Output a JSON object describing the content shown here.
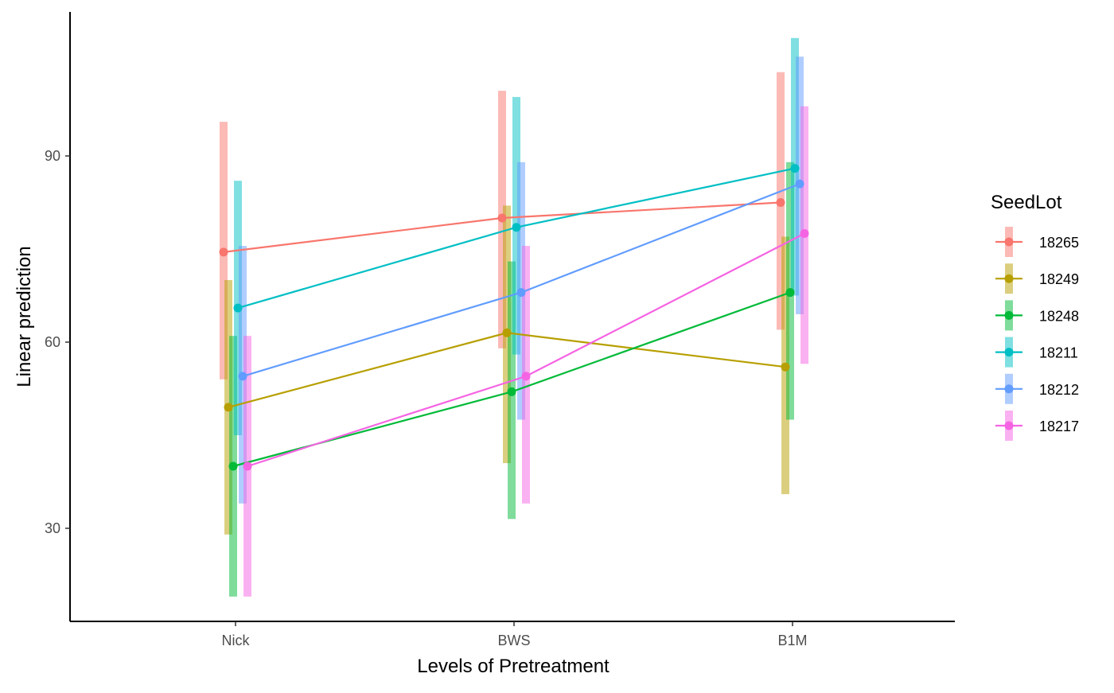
{
  "chart_data": {
    "type": "line",
    "xlabel": "Levels of Pretreatment",
    "ylabel": "Linear prediction",
    "categories": [
      "Nick",
      "BWS",
      "B1M"
    ],
    "yticks": [
      30,
      60,
      90
    ],
    "ylim": [
      15,
      113
    ],
    "legend": {
      "title": "SeedLot",
      "position": "right"
    },
    "series": [
      {
        "name": "18265",
        "color": "#F8766D",
        "values": [
          74.5,
          80,
          82.5
        ],
        "lower": [
          54,
          59,
          62
        ],
        "upper": [
          95.5,
          100.5,
          103.5
        ]
      },
      {
        "name": "18249",
        "color": "#B79F00",
        "values": [
          49.5,
          61.5,
          56
        ],
        "lower": [
          29,
          40.5,
          35.5
        ],
        "upper": [
          70,
          82,
          77
        ]
      },
      {
        "name": "18248",
        "color": "#00BA38",
        "values": [
          40,
          52,
          68
        ],
        "lower": [
          19,
          31.5,
          47.5
        ],
        "upper": [
          61,
          73,
          89
        ]
      },
      {
        "name": "18211",
        "color": "#00BFC4",
        "values": [
          65.5,
          78.5,
          88
        ],
        "lower": [
          45,
          58,
          67.5
        ],
        "upper": [
          86,
          99.5,
          109
        ]
      },
      {
        "name": "18212",
        "color": "#619CFF",
        "values": [
          54.5,
          68,
          85.5
        ],
        "lower": [
          34,
          47.5,
          64.5
        ],
        "upper": [
          75.5,
          89,
          106
        ]
      },
      {
        "name": "18217",
        "color": "#F564E3",
        "values": [
          40,
          54.5,
          77.5
        ],
        "lower": [
          19,
          34,
          56.5
        ],
        "upper": [
          61,
          75.5,
          98
        ]
      }
    ]
  }
}
